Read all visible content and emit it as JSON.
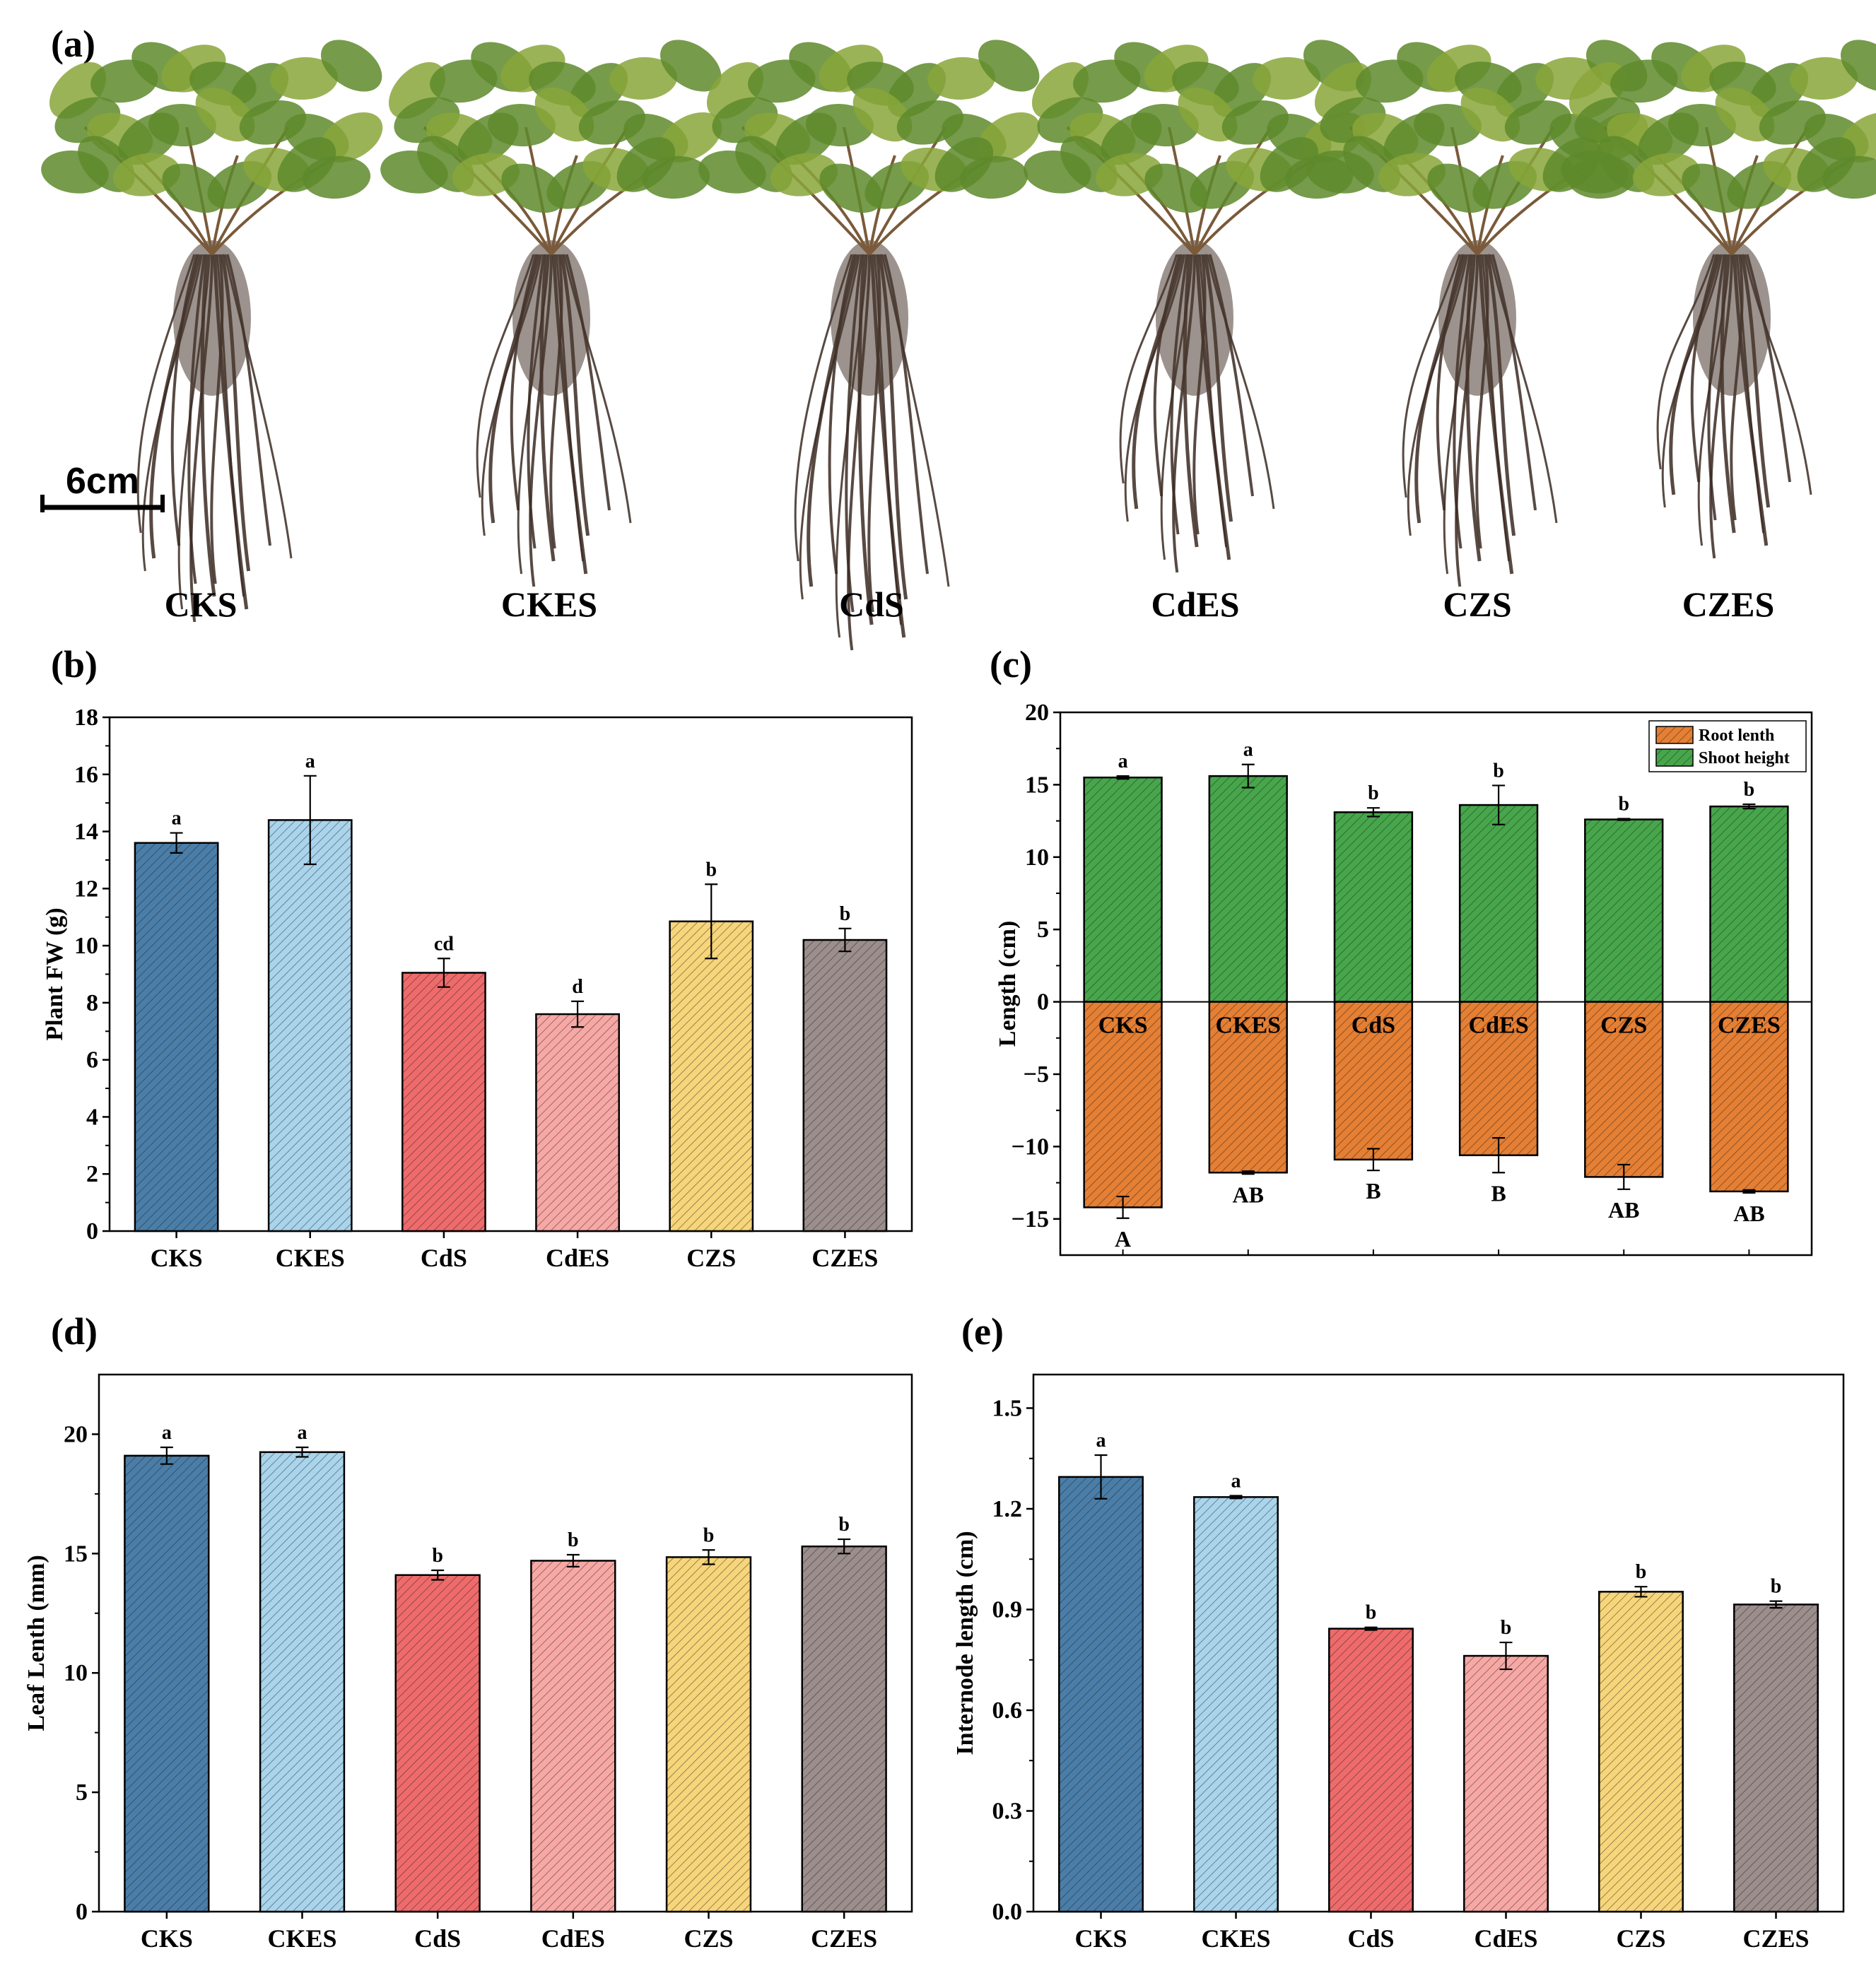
{
  "panel_labels": [
    "(a)",
    "(b)",
    "(c)",
    "(d)",
    "(e)"
  ],
  "photo": {
    "scale_bar": "6cm",
    "categories": [
      "CKS",
      "CKES",
      "CdS",
      "CdES",
      "CZS",
      "CZES"
    ]
  },
  "colors": {
    "CKS": "#4a7ea8",
    "CKES": "#a9d4ec",
    "CdS": "#ef6b6b",
    "CdES": "#f7a8a5",
    "CZS": "#f7d57a",
    "CZES": "#9b8e8c",
    "root": "#e57f33",
    "shoot": "#47a64b"
  },
  "chart_data": [
    {
      "panel": "(b)",
      "type": "bar",
      "ylabel": "Plant FW (g)",
      "categories": [
        "CKS",
        "CKES",
        "CdS",
        "CdES",
        "CZS",
        "CZES"
      ],
      "values": [
        13.6,
        14.4,
        9.05,
        7.6,
        10.85,
        10.2
      ],
      "errors": [
        0.35,
        1.55,
        0.5,
        0.45,
        1.3,
        0.4
      ],
      "letters": [
        "a",
        "a",
        "cd",
        "d",
        "b",
        "b"
      ],
      "ylim": [
        0,
        18
      ],
      "yticks": [
        "0",
        "2",
        "4",
        "6",
        "8",
        "10",
        "12",
        "14",
        "16",
        "18"
      ]
    },
    {
      "panel": "(c)",
      "type": "bar",
      "ylabel": "Length (cm)",
      "categories": [
        "CKS",
        "CKES",
        "CdS",
        "CdES",
        "CZS",
        "CZES"
      ],
      "series": [
        {
          "name": "Root lenth",
          "values": [
            -14.2,
            -11.8,
            -10.9,
            -10.6,
            -12.1,
            -13.1
          ],
          "errors": [
            0.75,
            0.1,
            0.75,
            1.2,
            0.85,
            0.1
          ],
          "letters": [
            "A",
            "AB",
            "B",
            "B",
            "AB",
            "AB"
          ]
        },
        {
          "name": "Shoot height",
          "values": [
            15.5,
            15.6,
            13.1,
            13.6,
            12.6,
            13.5
          ],
          "errors": [
            0.1,
            0.8,
            0.3,
            1.35,
            0.05,
            0.15
          ],
          "letters": [
            "a",
            "a",
            "b",
            "b",
            "b",
            "b"
          ]
        }
      ],
      "ylim": [
        -17.5,
        20
      ],
      "yticks": [
        "−15",
        "−10",
        "−5",
        "0",
        "5",
        "10",
        "15",
        "20"
      ],
      "legend_position": "top-right"
    },
    {
      "panel": "(d)",
      "type": "bar",
      "ylabel": "Leaf Lenth (mm)",
      "categories": [
        "CKS",
        "CKES",
        "CdS",
        "CdES",
        "CZS",
        "CZES"
      ],
      "values": [
        19.1,
        19.25,
        14.1,
        14.7,
        14.85,
        15.3
      ],
      "errors": [
        0.35,
        0.2,
        0.2,
        0.25,
        0.3,
        0.3
      ],
      "letters": [
        "a",
        "a",
        "b",
        "b",
        "b",
        "b"
      ],
      "ylim": [
        0,
        22.5
      ],
      "yticks": [
        "0",
        "5",
        "10",
        "15",
        "20"
      ]
    },
    {
      "panel": "(e)",
      "type": "bar",
      "ylabel": "Internode length (cm)",
      "categories": [
        "CKS",
        "CKES",
        "CdS",
        "CdES",
        "CZS",
        "CZES"
      ],
      "values": [
        1.295,
        1.235,
        0.843,
        0.762,
        0.953,
        0.915
      ],
      "errors": [
        0.065,
        0.004,
        0.004,
        0.04,
        0.015,
        0.01
      ],
      "letters": [
        "a",
        "a",
        "b",
        "b",
        "b",
        "b"
      ],
      "ylim": [
        0,
        1.6
      ],
      "yticks": [
        "0.0",
        "0.3",
        "0.6",
        "0.9",
        "1.2",
        "1.5"
      ]
    }
  ]
}
